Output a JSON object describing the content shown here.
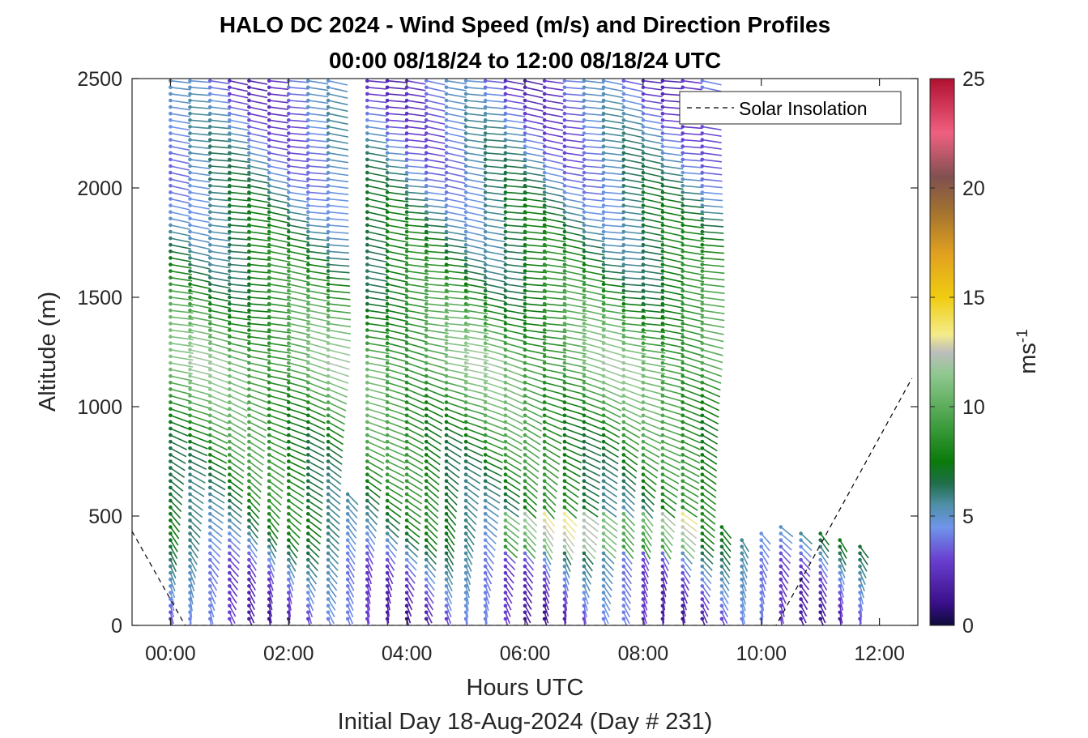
{
  "chart_data": {
    "type": "wind-barb-profile",
    "title": "HALO DC 2024 - Wind Speed (m/s) and Direction Profiles",
    "subtitle": "00:00 08/18/24 to 12:00 08/18/24  UTC",
    "xlabel": "Hours UTC",
    "xlabel2": "Initial Day 18-Aug-2024 (Day # 231)",
    "ylabel": "Altitude (m)",
    "colorbar_label": "ms",
    "colorbar_label_sup": "-1",
    "xlim": [
      -0.65,
      12.65
    ],
    "ylim": [
      0,
      2500
    ],
    "x_ticks": [
      0,
      2,
      4,
      6,
      8,
      10,
      12
    ],
    "x_tick_labels": [
      "00:00",
      "02:00",
      "04:00",
      "06:00",
      "08:00",
      "10:00",
      "12:00"
    ],
    "y_ticks": [
      0,
      500,
      1000,
      1500,
      2000,
      2500
    ],
    "y_tick_labels": [
      "0",
      "500",
      "1000",
      "1500",
      "2000",
      "2500"
    ],
    "colorbar_ticks": [
      0,
      5,
      10,
      15,
      20,
      25
    ],
    "colorbar_tick_labels": [
      "0",
      "5",
      "10",
      "15",
      "20",
      "25"
    ],
    "colorbar_range": [
      0,
      25
    ],
    "legend": {
      "label": "Solar Insolation",
      "placement": "top-right"
    },
    "solar_insolation": {
      "x": [
        -0.65,
        0.25,
        10.25,
        12.55
      ],
      "y": [
        430,
        0,
        0,
        1130
      ]
    },
    "colormap": [
      {
        "v": 0,
        "color": "#0d0b3a"
      },
      {
        "v": 1,
        "color": "#3a0f8a"
      },
      {
        "v": 3,
        "color": "#6a3fd0"
      },
      {
        "v": 4.5,
        "color": "#6f95ea"
      },
      {
        "v": 5.5,
        "color": "#4f8fa8"
      },
      {
        "v": 6.5,
        "color": "#1f6e4a"
      },
      {
        "v": 7.5,
        "color": "#0a7a0a"
      },
      {
        "v": 9,
        "color": "#3a9a3a"
      },
      {
        "v": 11.5,
        "color": "#90c890"
      },
      {
        "v": 12.5,
        "color": "#bdbdbd"
      },
      {
        "v": 13.3,
        "color": "#f4ec8a"
      },
      {
        "v": 15,
        "color": "#f0cc10"
      },
      {
        "v": 17,
        "color": "#e0a020"
      },
      {
        "v": 19,
        "color": "#a07030"
      },
      {
        "v": 20.5,
        "color": "#805050"
      },
      {
        "v": 22.5,
        "color": "#f06080"
      },
      {
        "v": 25,
        "color": "#b01030"
      }
    ],
    "profiles": {
      "times_hours": [
        0,
        0.33,
        0.67,
        1.0,
        1.33,
        1.67,
        2.0,
        2.33,
        2.67,
        3.0,
        3.33,
        3.67,
        4.0,
        4.33,
        4.67,
        5.0,
        5.33,
        5.67,
        6.0,
        6.33,
        6.67,
        7.0,
        7.33,
        7.67,
        8.0,
        8.33,
        8.67,
        9.0,
        9.33,
        9.67,
        10.0,
        10.33,
        10.67,
        11.0,
        11.33,
        11.67
      ],
      "top_altitude_m": [
        2500,
        2500,
        2500,
        2500,
        2500,
        2500,
        2500,
        2500,
        2500,
        620,
        2500,
        2500,
        2500,
        2500,
        2500,
        2500,
        2500,
        2500,
        2500,
        2500,
        2500,
        2500,
        2500,
        2500,
        2500,
        2500,
        2500,
        2500,
        450,
        410,
        440,
        460,
        420,
        420,
        410,
        380
      ],
      "gate_spacing_m": 30,
      "speed_profile": [
        {
          "alt_m": 0,
          "speed_ms": 2.5
        },
        {
          "alt_m": 250,
          "speed_ms": 4.0
        },
        {
          "alt_m": 450,
          "speed_ms": 6.5
        },
        {
          "alt_m": 900,
          "speed_ms": 8.5
        },
        {
          "alt_m": 1200,
          "speed_ms": 10.5
        },
        {
          "alt_m": 1600,
          "speed_ms": 7.5
        },
        {
          "alt_m": 2100,
          "speed_ms": 5.0
        },
        {
          "alt_m": 2500,
          "speed_ms": 3.5
        }
      ],
      "direction_note": "southerly near surface veering to westerly aloft"
    }
  }
}
